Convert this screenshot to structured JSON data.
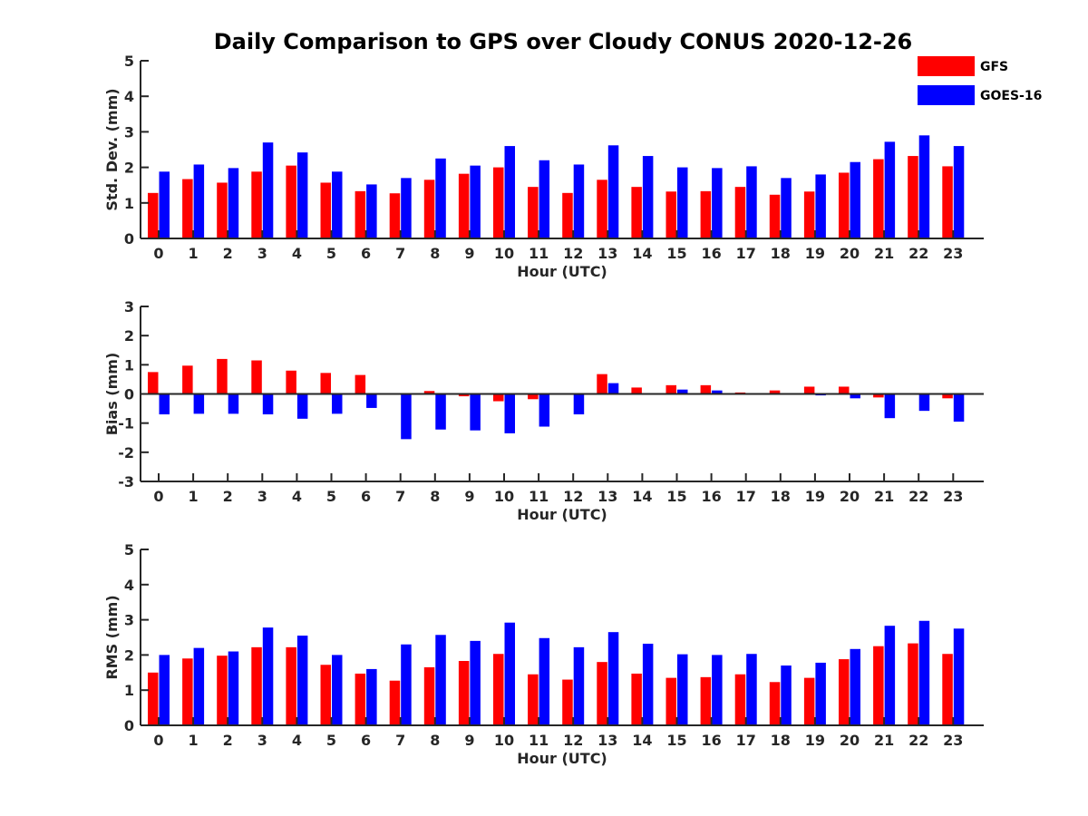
{
  "title": "Daily Comparison to GPS over Cloudy CONUS 2020-12-26",
  "colors": {
    "GFS": "#ff0000",
    "GOES-16": "#0000ff"
  },
  "legend": [
    {
      "name": "GFS",
      "color": "#ff0000"
    },
    {
      "name": "GOES-16",
      "color": "#0000ff"
    }
  ],
  "chart_data": [
    {
      "type": "bar",
      "title": "Daily Comparison to GPS over Cloudy CONUS 2020-12-26",
      "xlabel": "Hour (UTC)",
      "ylabel": "Std. Dev. (mm)",
      "ylim": [
        0,
        5
      ],
      "yticks": [
        0,
        1,
        2,
        3,
        4,
        5
      ],
      "categories": [
        "0",
        "1",
        "2",
        "3",
        "4",
        "5",
        "6",
        "7",
        "8",
        "9",
        "10",
        "11",
        "12",
        "13",
        "14",
        "15",
        "16",
        "17",
        "18",
        "19",
        "20",
        "21",
        "22",
        "23"
      ],
      "series": [
        {
          "name": "GFS",
          "color": "#ff0000",
          "values": [
            1.28,
            1.67,
            1.57,
            1.88,
            2.05,
            1.57,
            1.33,
            1.27,
            1.65,
            1.82,
            2.0,
            1.45,
            1.28,
            1.65,
            1.45,
            1.32,
            1.33,
            1.45,
            1.23,
            1.32,
            1.85,
            2.23,
            2.32,
            2.03
          ]
        },
        {
          "name": "GOES-16",
          "color": "#0000ff",
          "values": [
            1.88,
            2.08,
            1.98,
            2.7,
            2.42,
            1.88,
            1.52,
            1.7,
            2.25,
            2.05,
            2.6,
            2.2,
            2.08,
            2.62,
            2.32,
            2.0,
            1.98,
            2.03,
            1.7,
            1.8,
            2.15,
            2.72,
            2.9,
            2.6
          ]
        }
      ]
    },
    {
      "type": "bar",
      "xlabel": "Hour (UTC)",
      "ylabel": "Bias (mm)",
      "ylim": [
        -3,
        3
      ],
      "yticks": [
        -3,
        -2,
        -1,
        0,
        1,
        2,
        3
      ],
      "categories": [
        "0",
        "1",
        "2",
        "3",
        "4",
        "5",
        "6",
        "7",
        "8",
        "9",
        "10",
        "11",
        "12",
        "13",
        "14",
        "15",
        "16",
        "17",
        "18",
        "19",
        "20",
        "21",
        "22",
        "23"
      ],
      "series": [
        {
          "name": "GFS",
          "color": "#ff0000",
          "values": [
            0.75,
            0.97,
            1.2,
            1.15,
            0.8,
            0.72,
            0.65,
            0.0,
            0.1,
            -0.08,
            -0.25,
            -0.18,
            0.03,
            0.68,
            0.22,
            0.3,
            0.3,
            0.05,
            0.12,
            0.25,
            0.25,
            -0.12,
            0.0,
            -0.15
          ]
        },
        {
          "name": "GOES-16",
          "color": "#0000ff",
          "values": [
            -0.7,
            -0.68,
            -0.68,
            -0.7,
            -0.85,
            -0.68,
            -0.48,
            -1.55,
            -1.22,
            -1.25,
            -1.35,
            -1.12,
            -0.7,
            0.37,
            0.0,
            0.15,
            0.12,
            0.0,
            0.0,
            -0.05,
            -0.15,
            -0.83,
            -0.58,
            -0.95
          ]
        }
      ]
    },
    {
      "type": "bar",
      "xlabel": "Hour (UTC)",
      "ylabel": "RMS (mm)",
      "ylim": [
        0,
        5
      ],
      "yticks": [
        0,
        1,
        2,
        3,
        4,
        5
      ],
      "categories": [
        "0",
        "1",
        "2",
        "3",
        "4",
        "5",
        "6",
        "7",
        "8",
        "9",
        "10",
        "11",
        "12",
        "13",
        "14",
        "15",
        "16",
        "17",
        "18",
        "19",
        "20",
        "21",
        "22",
        "23"
      ],
      "series": [
        {
          "name": "GFS",
          "color": "#ff0000",
          "values": [
            1.5,
            1.9,
            1.98,
            2.22,
            2.22,
            1.72,
            1.47,
            1.27,
            1.65,
            1.83,
            2.03,
            1.45,
            1.3,
            1.8,
            1.47,
            1.35,
            1.37,
            1.45,
            1.23,
            1.35,
            1.88,
            2.25,
            2.33,
            2.03
          ]
        },
        {
          "name": "GOES-16",
          "color": "#0000ff",
          "values": [
            2.0,
            2.2,
            2.1,
            2.78,
            2.55,
            2.0,
            1.6,
            2.3,
            2.57,
            2.4,
            2.92,
            2.48,
            2.22,
            2.65,
            2.32,
            2.02,
            2.0,
            2.03,
            1.7,
            1.78,
            2.17,
            2.83,
            2.97,
            2.75
          ]
        }
      ]
    }
  ]
}
